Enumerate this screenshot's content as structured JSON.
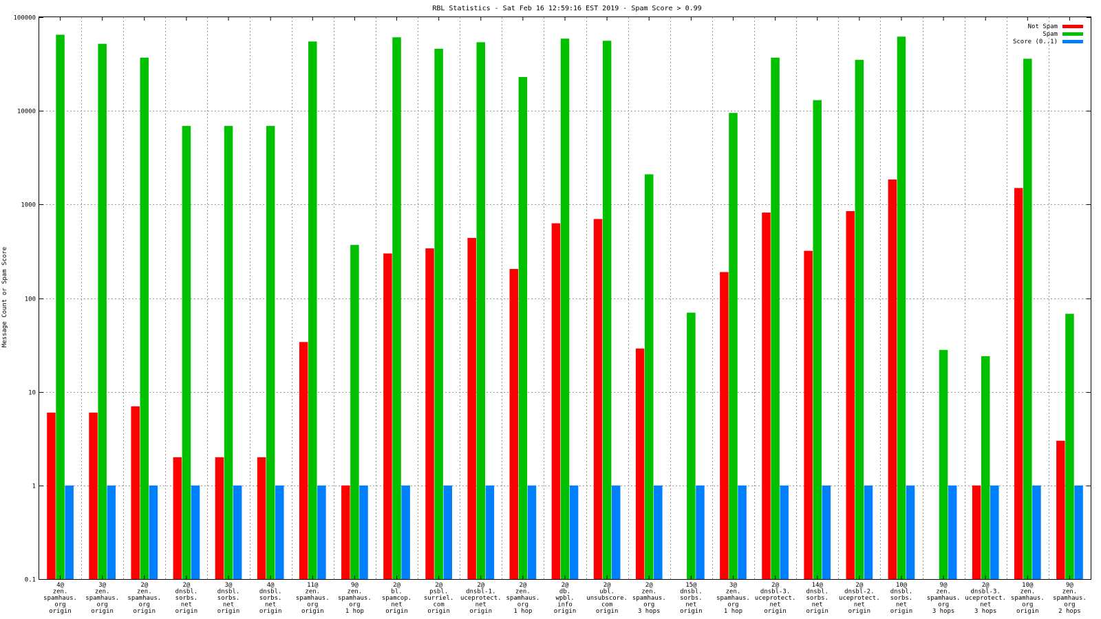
{
  "chart_data": {
    "type": "bar",
    "title": "RBL Statistics - Sat Feb 16 12:59:16 EST 2019 - Spam Score > 0.99",
    "xlabel": "",
    "ylabel": "Message Count or Spam Score",
    "yscale": "log",
    "ylim": [
      0.1,
      100000
    ],
    "yticks": [
      {
        "value": 0.1,
        "label": "0.1"
      },
      {
        "value": 1,
        "label": "1"
      },
      {
        "value": 10,
        "label": "10"
      },
      {
        "value": 100,
        "label": "100"
      },
      {
        "value": 1000,
        "label": "1000"
      },
      {
        "value": 10000,
        "label": "10000"
      },
      {
        "value": 100000,
        "label": "100000"
      }
    ],
    "grid": true,
    "legend_position": "top-right",
    "categories": [
      [
        "4@",
        "zen.",
        "spamhaus.",
        "org",
        "origin"
      ],
      [
        "3@",
        "zen.",
        "spamhaus.",
        "org",
        "origin"
      ],
      [
        "2@",
        "zen.",
        "spamhaus.",
        "org",
        "origin"
      ],
      [
        "2@",
        "dnsbl.",
        "sorbs.",
        "net",
        "origin"
      ],
      [
        "3@",
        "dnsbl.",
        "sorbs.",
        "net",
        "origin"
      ],
      [
        "4@",
        "dnsbl.",
        "sorbs.",
        "net",
        "origin"
      ],
      [
        "11@",
        "zen.",
        "spamhaus.",
        "org",
        "origin"
      ],
      [
        "9@",
        "zen.",
        "spamhaus.",
        "org",
        "1 hop"
      ],
      [
        "2@",
        "bl.",
        "spamcop.",
        "net",
        "origin"
      ],
      [
        "2@",
        "psbl.",
        "surriel.",
        "com",
        "origin"
      ],
      [
        "2@",
        "dnsbl-1.",
        "uceprotect.",
        "net",
        "origin"
      ],
      [
        "2@",
        "zen.",
        "spamhaus.",
        "org",
        "1 hop"
      ],
      [
        "2@",
        "db.",
        "wpbl.",
        "info",
        "origin"
      ],
      [
        "2@",
        "ubl.",
        "unsubscore.",
        "com",
        "origin"
      ],
      [
        "2@",
        "zen.",
        "spamhaus.",
        "org",
        "3 hops"
      ],
      [
        "15@",
        "dnsbl.",
        "sorbs.",
        "net",
        "origin"
      ],
      [
        "3@",
        "zen.",
        "spamhaus.",
        "org",
        "1 hop"
      ],
      [
        "2@",
        "dnsbl-3.",
        "uceprotect.",
        "net",
        "origin"
      ],
      [
        "14@",
        "dnsbl.",
        "sorbs.",
        "net",
        "origin"
      ],
      [
        "2@",
        "dnsbl-2.",
        "uceprotect.",
        "net",
        "origin"
      ],
      [
        "10@",
        "dnsbl.",
        "sorbs.",
        "net",
        "origin"
      ],
      [
        "9@",
        "zen.",
        "spamhaus.",
        "org",
        "3 hops"
      ],
      [
        "2@",
        "dnsbl-3.",
        "uceprotect.",
        "net",
        "3 hops"
      ],
      [
        "10@",
        "zen.",
        "spamhaus.",
        "org",
        "origin"
      ],
      [
        "9@",
        "zen.",
        "spamhaus.",
        "org",
        "2 hops"
      ]
    ],
    "series": [
      {
        "name": "Not Spam",
        "color": "#ff0000",
        "values": [
          6,
          6,
          7,
          2,
          2,
          2,
          34,
          1,
          300,
          340,
          440,
          205,
          630,
          700,
          29,
          null,
          190,
          820,
          320,
          850,
          1850,
          null,
          1,
          1500,
          3
        ]
      },
      {
        "name": "Spam",
        "color": "#00c000",
        "values": [
          65000,
          52000,
          37000,
          6900,
          6900,
          6900,
          55000,
          370,
          61000,
          46000,
          54000,
          23000,
          59000,
          56000,
          2100,
          70,
          9500,
          37000,
          13000,
          35000,
          62000,
          28,
          24,
          36000,
          68
        ]
      },
      {
        "name": "Score (0..1)",
        "color": "#0080ff",
        "values": [
          1,
          1,
          1,
          1,
          1,
          1,
          1,
          1,
          1,
          1,
          1,
          1,
          1,
          1,
          1,
          1,
          1,
          1,
          1,
          1,
          1,
          1,
          1,
          1,
          1
        ]
      }
    ]
  }
}
